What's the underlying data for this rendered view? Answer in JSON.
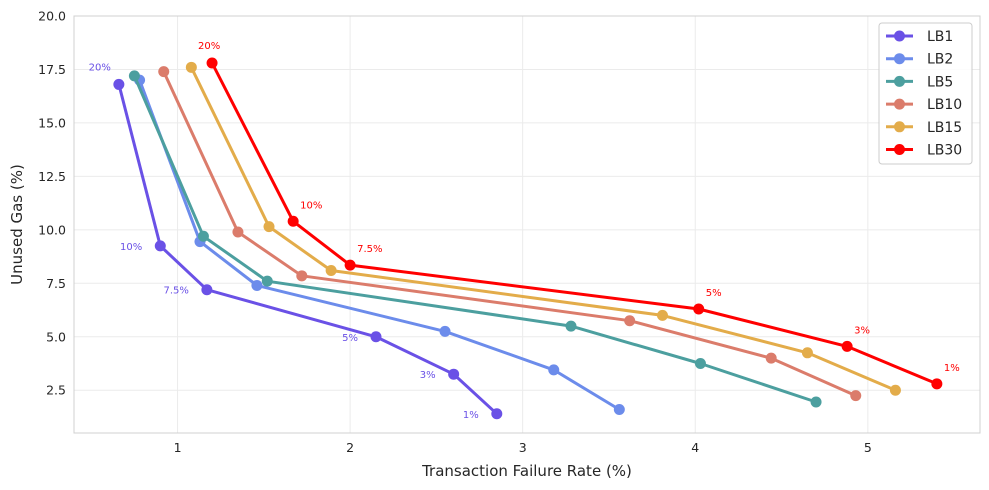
{
  "chart_data": {
    "type": "line",
    "xlabel": "Transaction Failure Rate (%)",
    "ylabel": "Unused Gas (%)",
    "xlim": [
      0.4,
      5.65
    ],
    "ylim": [
      0.5,
      20.0
    ],
    "xticks": [
      1,
      2,
      3,
      4,
      5
    ],
    "yticks": [
      2.5,
      5.0,
      7.5,
      10.0,
      12.5,
      15.0,
      17.5,
      20.0
    ],
    "xtick_labels": [
      "1",
      "2",
      "3",
      "4",
      "5"
    ],
    "ytick_labels": [
      "2.5",
      "5.0",
      "7.5",
      "10.0",
      "12.5",
      "15.0",
      "17.5",
      "20.0"
    ],
    "grid": true,
    "legend_position": "top-right",
    "series": [
      {
        "name": "LB1",
        "color": "#6a51e6",
        "x": [
          0.66,
          0.9,
          1.17,
          2.15,
          2.6,
          2.85
        ],
        "y": [
          16.8,
          9.25,
          7.2,
          5.0,
          3.25,
          1.4
        ]
      },
      {
        "name": "LB2",
        "color": "#6c8ceb",
        "x": [
          0.78,
          1.13,
          1.46,
          2.55,
          3.18,
          3.56
        ],
        "y": [
          17.0,
          9.45,
          7.4,
          5.25,
          3.45,
          1.6
        ]
      },
      {
        "name": "LB5",
        "color": "#4c9f9f",
        "x": [
          0.75,
          1.15,
          1.52,
          3.28,
          4.03,
          4.7
        ],
        "y": [
          17.2,
          9.7,
          7.6,
          5.5,
          3.75,
          1.95
        ]
      },
      {
        "name": "LB10",
        "color": "#db7c6b",
        "x": [
          0.92,
          1.35,
          1.72,
          3.62,
          4.44,
          4.93
        ],
        "y": [
          17.4,
          9.9,
          7.85,
          5.75,
          4.0,
          2.25
        ]
      },
      {
        "name": "LB15",
        "color": "#e3ac4a",
        "x": [
          1.08,
          1.53,
          1.89,
          3.81,
          4.65,
          5.16
        ],
        "y": [
          17.6,
          10.15,
          8.1,
          6.0,
          4.25,
          2.5
        ]
      },
      {
        "name": "LB30",
        "color": "#ff0000",
        "x": [
          1.2,
          1.67,
          2.0,
          4.02,
          4.88,
          5.4
        ],
        "y": [
          17.8,
          10.4,
          8.35,
          6.3,
          4.55,
          2.8
        ]
      }
    ],
    "annotations": [
      {
        "series": "LB1",
        "labels": [
          "20%",
          "10%",
          "7.5%",
          "5%",
          "3%",
          "1%"
        ]
      },
      {
        "series": "LB30",
        "labels": [
          "20%",
          "10%",
          "7.5%",
          "5%",
          "3%",
          "1%"
        ]
      }
    ]
  }
}
